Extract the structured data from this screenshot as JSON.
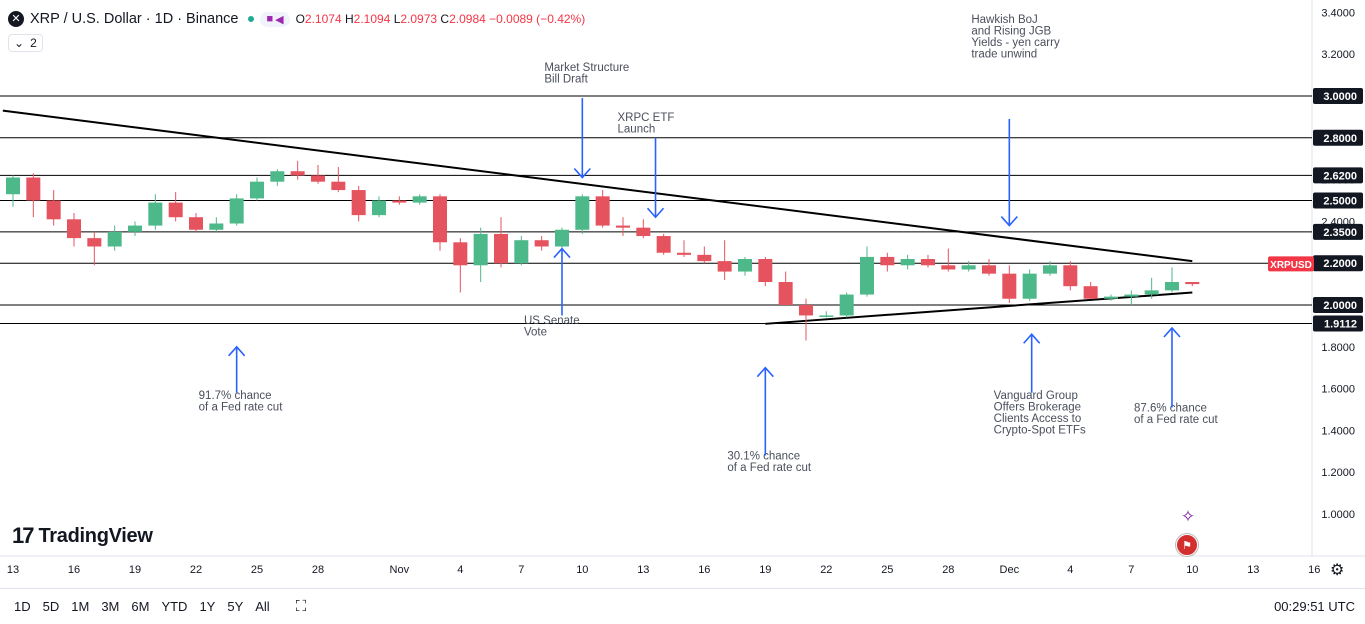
{
  "header": {
    "symbol": "XRP / U.S. Dollar · 1D · Binance",
    "close_icon": "x-circle-icon",
    "open": "2.1074",
    "high": "2.1094",
    "low": "2.0973",
    "close": "2.0984",
    "change": "−0.0089 (−0.42%)",
    "open_label": "O",
    "high_label": "H",
    "low_label": "L",
    "close_label": "C"
  },
  "indicator_toggle": {
    "count": "2",
    "icon": "chevron-down-icon"
  },
  "logo": {
    "mark": "17",
    "word": "TradingView"
  },
  "bottom": {
    "ranges": [
      "1D",
      "5D",
      "1M",
      "3M",
      "6M",
      "YTD",
      "1Y",
      "5Y",
      "All"
    ],
    "calendar_icon": "calendar-range-icon",
    "clock": "00:29:51 UTC",
    "settings_icon": "gear-icon"
  },
  "colors": {
    "up": "#4db889",
    "down": "#e5535f",
    "annotation": "#2962ff",
    "line": "#000000",
    "price_tag": "#f23645"
  },
  "chart_data": {
    "type": "candlestick",
    "title": "XRP / U.S. Dollar · 1D · Binance",
    "ylim": [
      0.82,
      3.42
    ],
    "y_ticks": [
      "3.4000",
      "3.2000",
      "2.8000",
      "2.6000",
      "2.4000",
      "2.2000",
      "1.8000",
      "1.6000",
      "1.4000",
      "1.2000",
      "1.0000"
    ],
    "x_ticks": [
      {
        "label": "13",
        "idx": 0
      },
      {
        "label": "16",
        "idx": 3
      },
      {
        "label": "19",
        "idx": 6
      },
      {
        "label": "22",
        "idx": 9
      },
      {
        "label": "25",
        "idx": 12
      },
      {
        "label": "28",
        "idx": 15
      },
      {
        "label": "Nov",
        "idx": 19
      },
      {
        "label": "4",
        "idx": 22
      },
      {
        "label": "7",
        "idx": 25
      },
      {
        "label": "10",
        "idx": 28
      },
      {
        "label": "13",
        "idx": 31
      },
      {
        "label": "16",
        "idx": 34
      },
      {
        "label": "19",
        "idx": 37
      },
      {
        "label": "22",
        "idx": 40
      },
      {
        "label": "25",
        "idx": 43
      },
      {
        "label": "28",
        "idx": 46
      },
      {
        "label": "Dec",
        "idx": 49
      },
      {
        "label": "4",
        "idx": 52
      },
      {
        "label": "7",
        "idx": 55
      },
      {
        "label": "10",
        "idx": 58
      },
      {
        "label": "13",
        "idx": 61
      },
      {
        "label": "16",
        "idx": 64
      }
    ],
    "candles": [
      {
        "o": 2.53,
        "h": 2.62,
        "l": 2.47,
        "c": 2.61
      },
      {
        "o": 2.61,
        "h": 2.63,
        "l": 2.42,
        "c": 2.5
      },
      {
        "o": 2.5,
        "h": 2.55,
        "l": 2.38,
        "c": 2.41
      },
      {
        "o": 2.41,
        "h": 2.44,
        "l": 2.28,
        "c": 2.32
      },
      {
        "o": 2.32,
        "h": 2.35,
        "l": 2.19,
        "c": 2.28
      },
      {
        "o": 2.28,
        "h": 2.38,
        "l": 2.26,
        "c": 2.35
      },
      {
        "o": 2.35,
        "h": 2.4,
        "l": 2.33,
        "c": 2.38
      },
      {
        "o": 2.38,
        "h": 2.53,
        "l": 2.36,
        "c": 2.49
      },
      {
        "o": 2.49,
        "h": 2.54,
        "l": 2.4,
        "c": 2.42
      },
      {
        "o": 2.42,
        "h": 2.44,
        "l": 2.35,
        "c": 2.36
      },
      {
        "o": 2.36,
        "h": 2.42,
        "l": 2.35,
        "c": 2.39
      },
      {
        "o": 2.39,
        "h": 2.53,
        "l": 2.38,
        "c": 2.51
      },
      {
        "o": 2.51,
        "h": 2.61,
        "l": 2.5,
        "c": 2.59
      },
      {
        "o": 2.59,
        "h": 2.65,
        "l": 2.57,
        "c": 2.64
      },
      {
        "o": 2.64,
        "h": 2.69,
        "l": 2.6,
        "c": 2.62
      },
      {
        "o": 2.62,
        "h": 2.67,
        "l": 2.58,
        "c": 2.59
      },
      {
        "o": 2.59,
        "h": 2.66,
        "l": 2.54,
        "c": 2.55
      },
      {
        "o": 2.55,
        "h": 2.57,
        "l": 2.4,
        "c": 2.43
      },
      {
        "o": 2.43,
        "h": 2.52,
        "l": 2.42,
        "c": 2.5
      },
      {
        "o": 2.5,
        "h": 2.52,
        "l": 2.48,
        "c": 2.49
      },
      {
        "o": 2.49,
        "h": 2.53,
        "l": 2.48,
        "c": 2.52
      },
      {
        "o": 2.52,
        "h": 2.53,
        "l": 2.26,
        "c": 2.3
      },
      {
        "o": 2.3,
        "h": 2.32,
        "l": 2.06,
        "c": 2.19
      },
      {
        "o": 2.19,
        "h": 2.37,
        "l": 2.11,
        "c": 2.34
      },
      {
        "o": 2.34,
        "h": 2.42,
        "l": 2.18,
        "c": 2.2
      },
      {
        "o": 2.2,
        "h": 2.33,
        "l": 2.19,
        "c": 2.31
      },
      {
        "o": 2.31,
        "h": 2.33,
        "l": 2.26,
        "c": 2.28
      },
      {
        "o": 2.28,
        "h": 2.37,
        "l": 2.27,
        "c": 2.36
      },
      {
        "o": 2.36,
        "h": 2.53,
        "l": 2.34,
        "c": 2.52
      },
      {
        "o": 2.52,
        "h": 2.55,
        "l": 2.37,
        "c": 2.38
      },
      {
        "o": 2.38,
        "h": 2.42,
        "l": 2.33,
        "c": 2.37
      },
      {
        "o": 2.37,
        "h": 2.41,
        "l": 2.32,
        "c": 2.33
      },
      {
        "o": 2.33,
        "h": 2.34,
        "l": 2.24,
        "c": 2.25
      },
      {
        "o": 2.25,
        "h": 2.31,
        "l": 2.23,
        "c": 2.24
      },
      {
        "o": 2.24,
        "h": 2.28,
        "l": 2.2,
        "c": 2.21
      },
      {
        "o": 2.21,
        "h": 2.31,
        "l": 2.12,
        "c": 2.16
      },
      {
        "o": 2.16,
        "h": 2.23,
        "l": 2.14,
        "c": 2.22
      },
      {
        "o": 2.22,
        "h": 2.23,
        "l": 2.09,
        "c": 2.11
      },
      {
        "o": 2.11,
        "h": 2.16,
        "l": 2.0,
        "c": 2.0
      },
      {
        "o": 2.0,
        "h": 2.03,
        "l": 1.83,
        "c": 1.95
      },
      {
        "o": 1.95,
        "h": 1.97,
        "l": 1.94,
        "c": 1.95
      },
      {
        "o": 1.95,
        "h": 2.06,
        "l": 1.94,
        "c": 2.05
      },
      {
        "o": 2.05,
        "h": 2.28,
        "l": 2.04,
        "c": 2.23
      },
      {
        "o": 2.23,
        "h": 2.25,
        "l": 2.16,
        "c": 2.19
      },
      {
        "o": 2.19,
        "h": 2.24,
        "l": 2.17,
        "c": 2.22
      },
      {
        "o": 2.22,
        "h": 2.24,
        "l": 2.18,
        "c": 2.19
      },
      {
        "o": 2.19,
        "h": 2.27,
        "l": 2.16,
        "c": 2.17
      },
      {
        "o": 2.17,
        "h": 2.21,
        "l": 2.16,
        "c": 2.19
      },
      {
        "o": 2.19,
        "h": 2.22,
        "l": 2.14,
        "c": 2.15
      },
      {
        "o": 2.15,
        "h": 2.19,
        "l": 2.01,
        "c": 2.03
      },
      {
        "o": 2.03,
        "h": 2.17,
        "l": 2.02,
        "c": 2.15
      },
      {
        "o": 2.15,
        "h": 2.21,
        "l": 2.14,
        "c": 2.19
      },
      {
        "o": 2.19,
        "h": 2.21,
        "l": 2.07,
        "c": 2.09
      },
      {
        "o": 2.09,
        "h": 2.11,
        "l": 2.03,
        "c": 2.03
      },
      {
        "o": 2.03,
        "h": 2.05,
        "l": 2.02,
        "c": 2.04
      },
      {
        "o": 2.04,
        "h": 2.07,
        "l": 2.0,
        "c": 2.05
      },
      {
        "o": 2.05,
        "h": 2.13,
        "l": 2.03,
        "c": 2.07
      },
      {
        "o": 2.07,
        "h": 2.18,
        "l": 2.06,
        "c": 2.11
      },
      {
        "o": 2.11,
        "h": 2.11,
        "l": 2.09,
        "c": 2.1
      }
    ],
    "levels": [
      {
        "price": 3.0,
        "label": "3.0000"
      },
      {
        "price": 2.8,
        "label": "2.8000"
      },
      {
        "price": 2.62,
        "label": "2.6200"
      },
      {
        "price": 2.5,
        "label": "2.5000"
      },
      {
        "price": 2.35,
        "label": "2.3500"
      },
      {
        "price": 2.2,
        "label": "2.2000"
      },
      {
        "price": 2.0,
        "label": "2.0000"
      },
      {
        "price": 1.9112,
        "label": "1.9112"
      }
    ],
    "trendlines": [
      {
        "from": {
          "idx": -0.5,
          "price": 2.93
        },
        "to": {
          "idx": 58,
          "price": 2.21
        }
      },
      {
        "from": {
          "idx": 37,
          "price": 1.91
        },
        "to": {
          "idx": 58,
          "price": 2.06
        }
      }
    ],
    "price_tag": {
      "label": "XRPUSD",
      "price": 2.0984
    },
    "annotations": [
      {
        "text": [
          "Market Structure",
          "Bill Draft"
        ],
        "idx": 28,
        "text_price": 3.12,
        "arrow": "down",
        "arrow_from": 2.99,
        "arrow_to": 2.61
      },
      {
        "text": [
          "XRPC ETF",
          "Launch"
        ],
        "idx": 31.6,
        "text_price": 2.88,
        "arrow": "down",
        "arrow_from": 2.8,
        "arrow_to": 2.42
      },
      {
        "text": [
          "Hawkish BoJ",
          "and Rising JGB",
          "Yields - yen carry",
          "trade unwind"
        ],
        "idx": 49,
        "text_price": 3.35,
        "arrow": "down",
        "arrow_from": 2.89,
        "arrow_to": 2.38
      },
      {
        "text": [
          "US Senate",
          "Vote"
        ],
        "idx": 27,
        "text_price": 1.91,
        "arrow": "up",
        "arrow_from": 1.95,
        "arrow_to": 2.27
      },
      {
        "text": [
          "91.7% chance",
          "of a Fed rate cut"
        ],
        "idx": 11,
        "text_price": 1.55,
        "arrow": "up",
        "arrow_from": 1.58,
        "arrow_to": 1.8
      },
      {
        "text": [
          "30.1% chance",
          "of a Fed rate cut"
        ],
        "idx": 37,
        "text_price": 1.26,
        "arrow": "up",
        "arrow_from": 1.28,
        "arrow_to": 1.7
      },
      {
        "text": [
          "Vanguard Group",
          "Offers Brokerage",
          "Clients Access to",
          "Crypto-Spot ETFs"
        ],
        "idx": 50.1,
        "text_price": 1.55,
        "arrow": "up",
        "arrow_from": 1.58,
        "arrow_to": 1.86
      },
      {
        "text": [
          "87.6% chance",
          "of a Fed rate cut"
        ],
        "idx": 57,
        "text_price": 1.49,
        "arrow": "up",
        "arrow_from": 1.51,
        "arrow_to": 1.89
      }
    ]
  }
}
